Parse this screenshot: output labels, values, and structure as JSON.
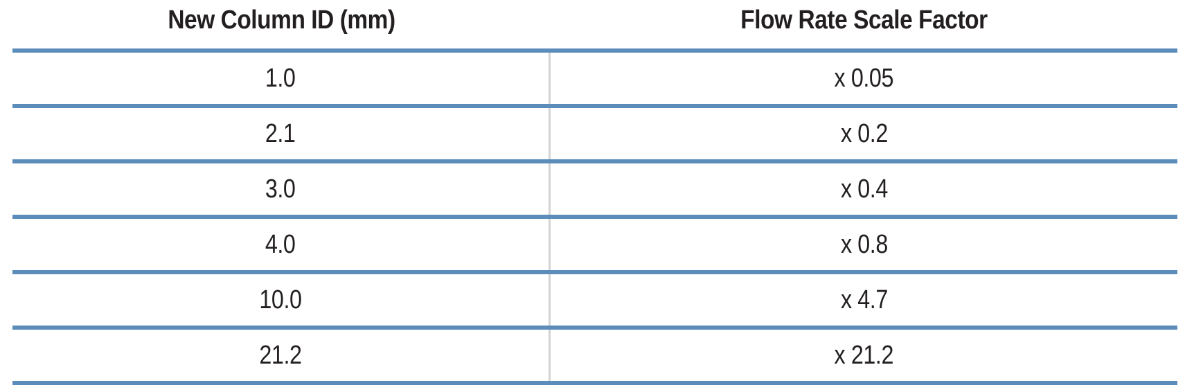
{
  "table": {
    "headers": [
      "New Column ID (mm)",
      "Flow Rate Scale Factor"
    ],
    "rows": [
      [
        "1.0",
        "x 0.05"
      ],
      [
        "2.1",
        "x 0.2"
      ],
      [
        "3.0",
        "x 0.4"
      ],
      [
        "4.0",
        "x 0.8"
      ],
      [
        "10.0",
        "x 4.7"
      ],
      [
        "21.2",
        "x 21.2"
      ]
    ],
    "rule_color": "#5b8cba",
    "divider_color": "#d1d3d4"
  }
}
